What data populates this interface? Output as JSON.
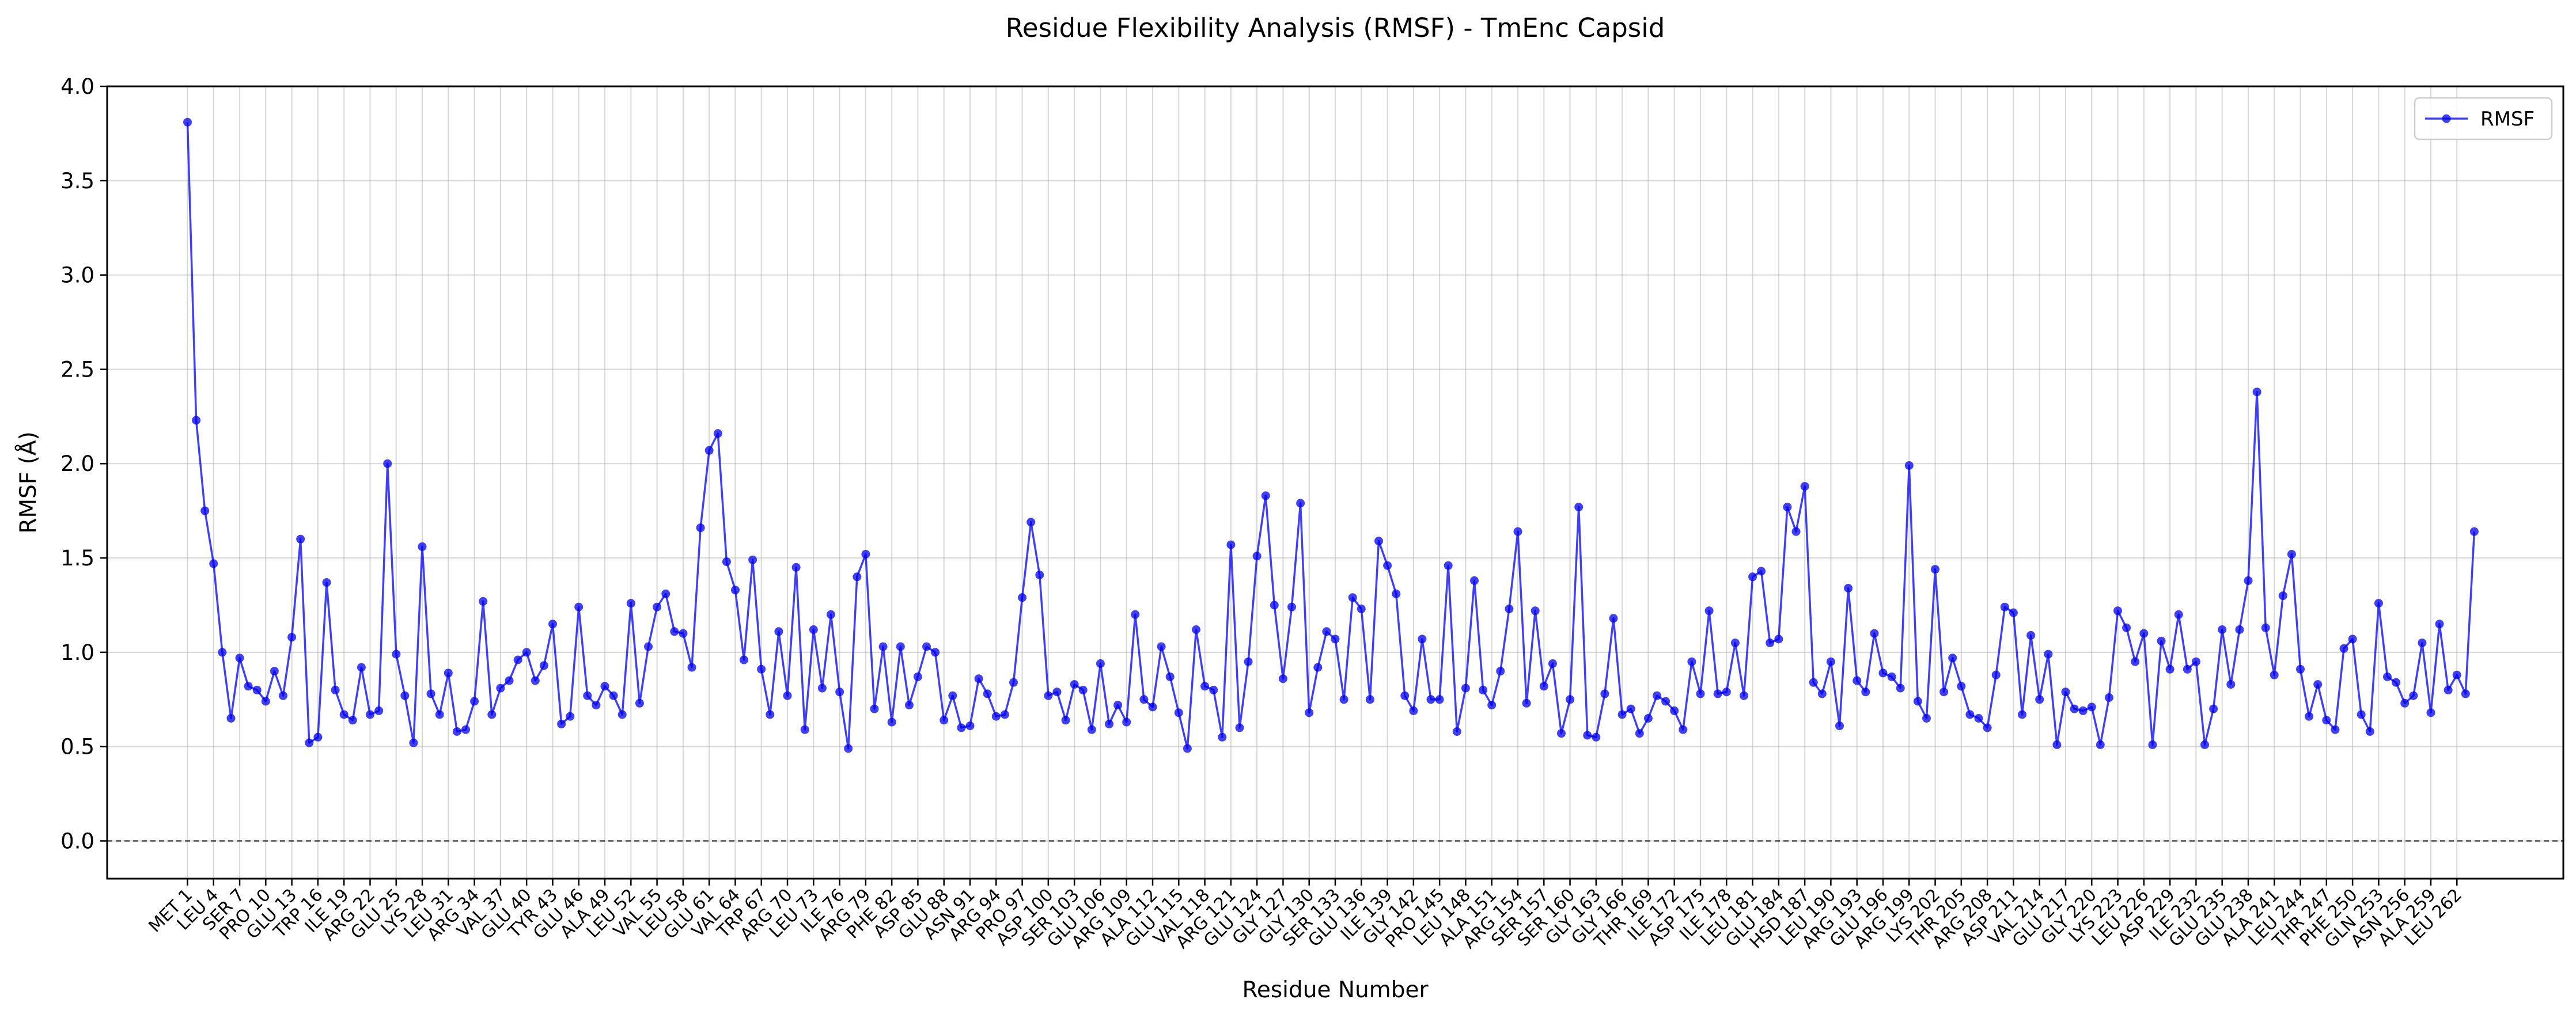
{
  "chart_data": {
    "type": "line",
    "title": "Residue Flexibility Analysis (RMSF) - TmEnc Capsid",
    "xlabel": "Residue Number",
    "ylabel": "RMSF (Å)",
    "ylim": [
      -0.2,
      4.0
    ],
    "yticks": [
      "0.0",
      "0.5",
      "1.0",
      "1.5",
      "2.0",
      "2.5",
      "3.0",
      "3.5",
      "4.0"
    ],
    "grid": true,
    "legend_position": "top-right",
    "reference_line": 0.0,
    "x_start": 1,
    "x_end": 265,
    "tick_labels": [
      "MET 1",
      "LEU 4",
      "SER 7",
      "PRO 10",
      "GLU 13",
      "TRP 16",
      "ILE 19",
      "ARG 22",
      "GLU 25",
      "LYS 28",
      "LEU 31",
      "ARG 34",
      "VAL 37",
      "GLU 40",
      "TYR 43",
      "GLU 46",
      "ALA 49",
      "LEU 52",
      "VAL 55",
      "LEU 58",
      "GLU 61",
      "VAL 64",
      "TRP 67",
      "ARG 70",
      "LEU 73",
      "ILE 76",
      "ARG 79",
      "PHE 82",
      "ASP 85",
      "GLU 88",
      "ASN 91",
      "ARG 94",
      "PRO 97",
      "ASP 100",
      "SER 103",
      "GLU 106",
      "ARG 109",
      "ALA 112",
      "GLU 115",
      "VAL 118",
      "ARG 121",
      "GLU 124",
      "GLY 127",
      "GLY 130",
      "SER 133",
      "GLU 136",
      "ILE 139",
      "GLY 142",
      "PRO 145",
      "LEU 148",
      "ALA 151",
      "ARG 154",
      "SER 157",
      "SER 160",
      "GLY 163",
      "GLY 166",
      "THR 169",
      "ILE 172",
      "ASP 175",
      "ILE 178",
      "LEU 181",
      "GLU 184",
      "HSD 187",
      "LEU 190",
      "ARG 193",
      "GLU 196",
      "ARG 199",
      "LYS 202",
      "THR 205",
      "ARG 208",
      "ASP 211",
      "VAL 214",
      "GLU 217",
      "GLY 220",
      "LYS 223",
      "LEU 226",
      "ASP 229",
      "ILE 232",
      "GLU 235",
      "GLU 238",
      "ALA 241",
      "LEU 244",
      "THR 247",
      "PHE 250",
      "GLN 253",
      "ASN 256",
      "ALA 259",
      "LEU 262"
    ],
    "series": [
      {
        "name": "RMSF",
        "color": "#0000ee",
        "values": [
          3.81,
          2.23,
          1.75,
          1.47,
          1.0,
          0.65,
          0.97,
          0.82,
          0.8,
          0.74,
          0.9,
          0.77,
          1.08,
          1.6,
          0.52,
          0.55,
          1.37,
          0.8,
          0.67,
          0.64,
          0.92,
          0.67,
          0.69,
          2.0,
          0.99,
          0.77,
          0.52,
          1.56,
          0.78,
          0.67,
          0.89,
          0.58,
          0.59,
          0.74,
          1.27,
          0.67,
          0.81,
          0.85,
          0.96,
          1.0,
          0.85,
          0.93,
          1.15,
          0.62,
          0.66,
          1.24,
          0.77,
          0.72,
          0.82,
          0.77,
          0.67,
          1.26,
          0.73,
          1.03,
          1.24,
          1.31,
          1.11,
          1.1,
          0.92,
          1.66,
          2.07,
          2.16,
          1.48,
          1.33,
          0.96,
          1.49,
          0.91,
          0.67,
          1.11,
          0.77,
          1.45,
          0.59,
          1.12,
          0.81,
          1.2,
          0.79,
          0.49,
          1.4,
          1.52,
          0.7,
          1.03,
          0.63,
          1.03,
          0.72,
          0.87,
          1.03,
          1.0,
          0.64,
          0.77,
          0.6,
          0.61,
          0.86,
          0.78,
          0.66,
          0.67,
          0.84,
          1.29,
          1.69,
          1.41,
          0.77,
          0.79,
          0.64,
          0.83,
          0.8,
          0.59,
          0.94,
          0.62,
          0.72,
          0.63,
          1.2,
          0.75,
          0.71,
          1.03,
          0.87,
          0.68,
          0.49,
          1.12,
          0.82,
          0.8,
          0.55,
          1.57,
          0.6,
          0.95,
          1.51,
          1.83,
          1.25,
          0.86,
          1.24,
          1.79,
          0.68,
          0.92,
          1.11,
          1.07,
          0.75,
          1.29,
          1.23,
          0.75,
          1.59,
          1.46,
          1.31,
          0.77,
          0.69,
          1.07,
          0.75,
          0.75,
          1.46,
          0.58,
          0.81,
          1.38,
          0.8,
          0.72,
          0.9,
          1.23,
          1.64,
          0.73,
          1.22,
          0.82,
          0.94,
          0.57,
          0.75,
          1.77,
          0.56,
          0.55,
          0.78,
          1.18,
          0.67,
          0.7,
          0.57,
          0.65,
          0.77,
          0.74,
          0.69,
          0.59,
          0.95,
          0.78,
          1.22,
          0.78,
          0.79,
          1.05,
          0.77,
          1.4,
          1.43,
          1.05,
          1.07,
          1.77,
          1.64,
          1.88,
          0.84,
          0.78,
          0.95,
          0.61,
          1.34,
          0.85,
          0.79,
          1.1,
          0.89,
          0.87,
          0.81,
          1.99,
          0.74,
          0.65,
          1.44,
          0.79,
          0.97,
          0.82,
          0.67,
          0.65,
          0.6,
          0.88,
          1.24,
          1.21,
          0.67,
          1.09,
          0.75,
          0.99,
          0.51,
          0.79,
          0.7,
          0.69,
          0.71,
          0.51,
          0.76,
          1.22,
          1.13,
          0.95,
          1.1,
          0.51,
          1.06,
          0.91,
          1.2,
          0.91,
          0.95,
          0.51,
          0.7,
          1.12,
          0.83,
          1.12,
          1.38,
          2.38,
          1.13,
          0.88,
          1.3,
          1.52,
          0.91,
          0.66,
          0.83,
          0.64,
          0.59,
          1.02,
          1.07,
          0.67,
          0.58,
          1.26,
          0.87,
          0.84,
          0.73,
          0.77,
          1.05,
          0.68,
          1.15,
          0.8,
          0.88,
          0.78,
          1.64
        ]
      }
    ]
  }
}
